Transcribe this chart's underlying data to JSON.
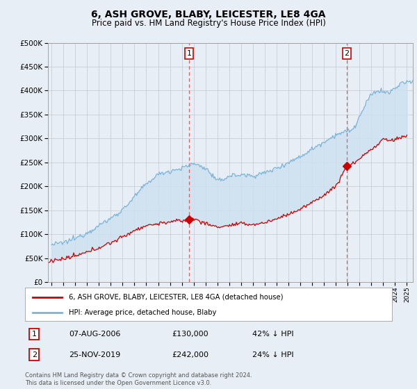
{
  "title": "6, ASH GROVE, BLABY, LEICESTER, LE8 4GA",
  "subtitle": "Price paid vs. HM Land Registry's House Price Index (HPI)",
  "legend_line1": "6, ASH GROVE, BLABY, LEICESTER, LE8 4GA (detached house)",
  "legend_line2": "HPI: Average price, detached house, Blaby",
  "footnote": "Contains HM Land Registry data © Crown copyright and database right 2024.\nThis data is licensed under the Open Government Licence v3.0.",
  "sale1_label": "1",
  "sale1_date": "07-AUG-2006",
  "sale1_price": "£130,000",
  "sale1_hpi": "42% ↓ HPI",
  "sale1_year": 2006.6,
  "sale1_value": 130000,
  "sale2_label": "2",
  "sale2_date": "25-NOV-2019",
  "sale2_price": "£242,000",
  "sale2_hpi": "24% ↓ HPI",
  "sale2_year": 2019.92,
  "sale2_value": 242000,
  "ylim": [
    0,
    500000
  ],
  "xlim_start": 1994.7,
  "xlim_end": 2025.5,
  "hpi_color": "#7ab4d8",
  "hpi_fill_color": "#cce0f0",
  "price_color": "#cc0000",
  "vline_color": "#e06060",
  "background_color": "#e8eef5",
  "plot_bg": "#e8eef5",
  "grid_color": "#c0c8d0",
  "title_fontsize": 10,
  "subtitle_fontsize": 8.5
}
